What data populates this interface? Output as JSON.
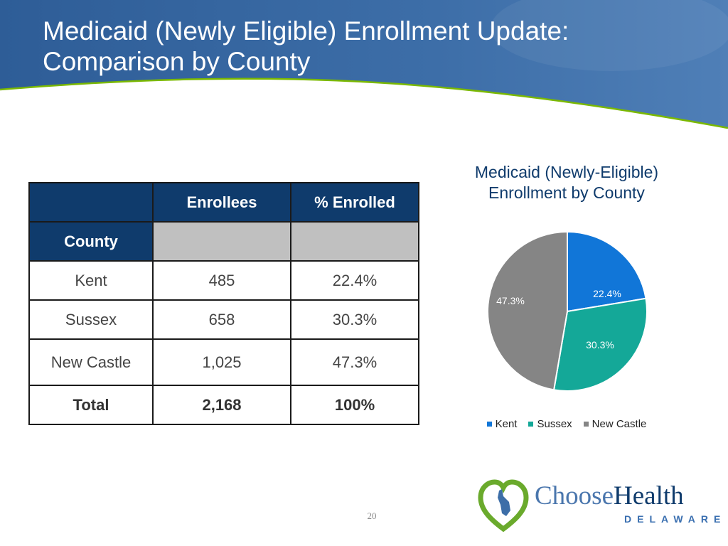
{
  "slide": {
    "title_line1": "Medicaid (Newly Eligible) Enrollment Update:",
    "title_line2": "Comparison by County",
    "page_number": "20"
  },
  "table": {
    "header": [
      "",
      "Enrollees",
      "% Enrolled"
    ],
    "subheader": "County",
    "rows": [
      {
        "county": "Kent",
        "enrollees": "485",
        "percent": "22.4%"
      },
      {
        "county": "Sussex",
        "enrollees": "658",
        "percent": "30.3%"
      },
      {
        "county": "New Castle",
        "enrollees": "1,025",
        "percent": "47.3%"
      }
    ],
    "total": {
      "label": "Total",
      "enrollees": "2,168",
      "percent": "100%"
    }
  },
  "chart_data": {
    "type": "pie",
    "title": "Medicaid (Newly-Eligible) Enrollment by County",
    "title_line1": "Medicaid (Newly-Eligible)",
    "title_line2": "Enrollment by County",
    "categories": [
      "Kent",
      "Sussex",
      "New Castle"
    ],
    "values": [
      22.4,
      30.3,
      47.3
    ],
    "data_labels": [
      "22.4%",
      "30.3%",
      "47.3%"
    ],
    "colors": [
      "#1176d8",
      "#14a898",
      "#858585"
    ],
    "legend_position": "bottom",
    "start_angle": "12 o'clock, clockwise"
  },
  "logo": {
    "name_part1": "Choose",
    "name_part2": "Health",
    "subtitle": "DELAWARE",
    "colors": {
      "green": "#6aaa2c",
      "blue": "#0f3b6c"
    }
  },
  "theme": {
    "header_blue": "#3566a0",
    "accent_green": "#7ab800"
  }
}
